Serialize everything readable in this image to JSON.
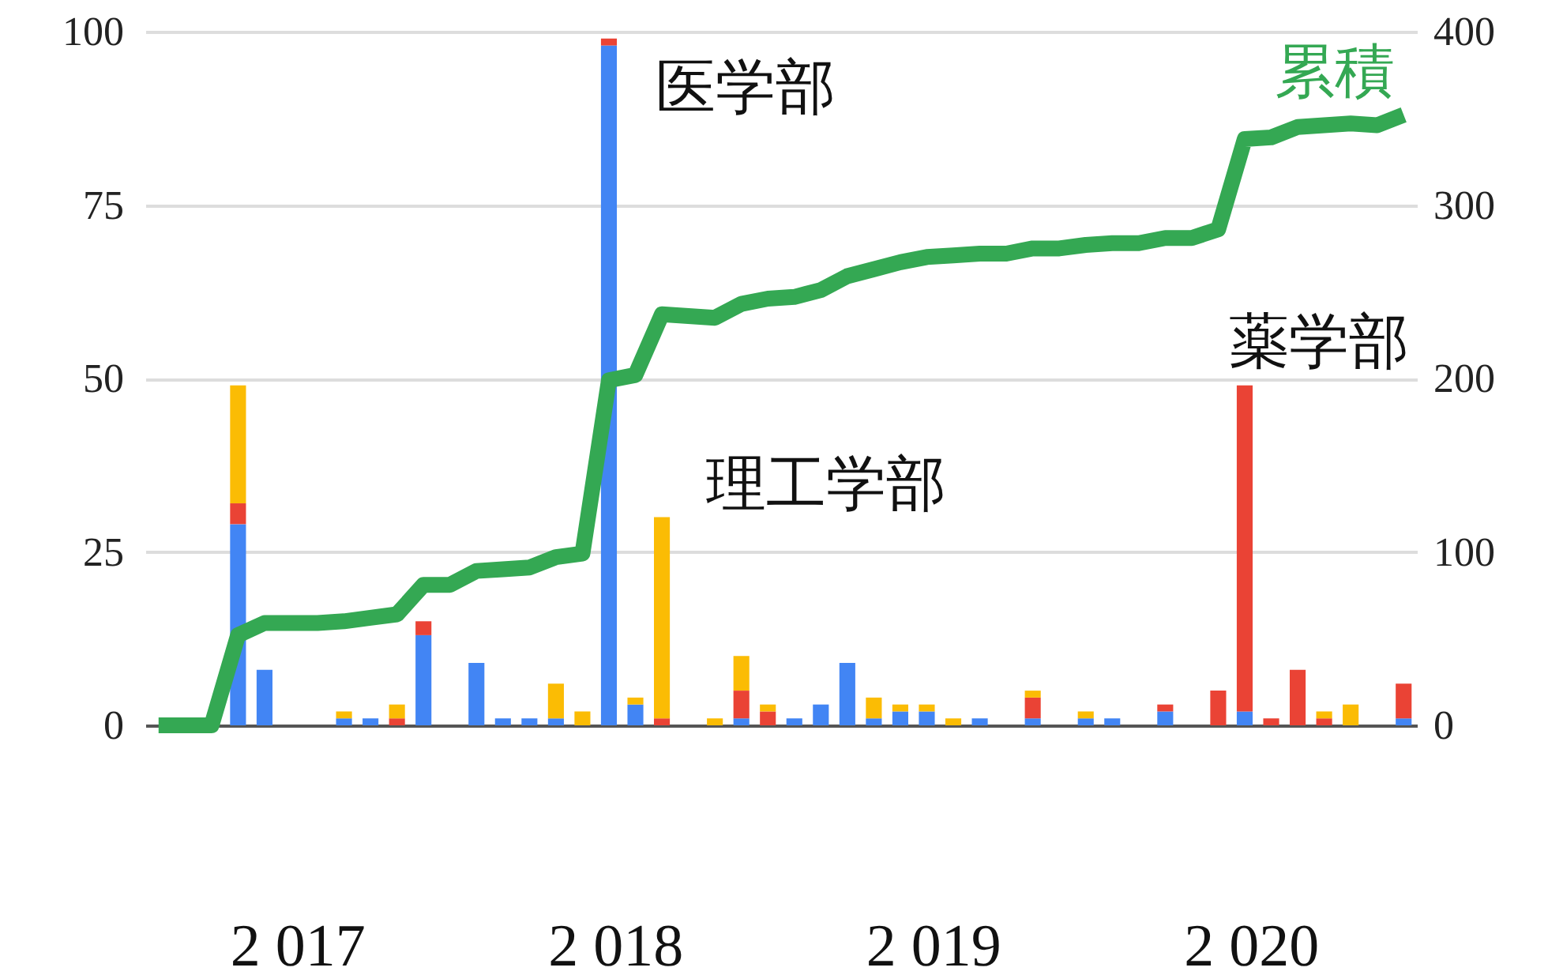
{
  "chart_data": {
    "type": "bar",
    "stacked": true,
    "categories": [
      null,
      null,
      null,
      null,
      null,
      null,
      null,
      null,
      null,
      null,
      null,
      null,
      null,
      null,
      null,
      null,
      null,
      null,
      null,
      null,
      null,
      null,
      null,
      null,
      null,
      null,
      null,
      null,
      null,
      null,
      null,
      null,
      null,
      null,
      null,
      null,
      null,
      null,
      null,
      null,
      null,
      null,
      null,
      null,
      null,
      null,
      null,
      null
    ],
    "series": [
      {
        "color": "#4285f4",
        "values": [
          null,
          null,
          null,
          29,
          8,
          null,
          null,
          1,
          1,
          null,
          13,
          null,
          9,
          1,
          1,
          1,
          null,
          98,
          3,
          null,
          null,
          null,
          1,
          null,
          1,
          3,
          9,
          1,
          2,
          2,
          null,
          1,
          null,
          1,
          null,
          1,
          1,
          null,
          2,
          null,
          null,
          2,
          null,
          null,
          null,
          null,
          null,
          1
        ]
      },
      {
        "color": "#ea4335",
        "values": [
          null,
          null,
          null,
          3,
          null,
          null,
          null,
          null,
          null,
          1,
          2,
          null,
          null,
          null,
          null,
          null,
          null,
          1,
          null,
          1,
          null,
          null,
          4,
          2,
          null,
          null,
          null,
          null,
          null,
          null,
          null,
          null,
          null,
          3,
          null,
          null,
          null,
          null,
          1,
          null,
          5,
          47,
          1,
          8,
          1,
          null,
          null,
          5
        ]
      },
      {
        "color": "#fbbc04",
        "values": [
          null,
          null,
          null,
          17,
          null,
          null,
          null,
          1,
          null,
          2,
          null,
          null,
          null,
          null,
          null,
          5,
          2,
          null,
          1,
          29,
          null,
          1,
          5,
          1,
          null,
          null,
          null,
          3,
          1,
          1,
          1,
          null,
          null,
          1,
          null,
          1,
          null,
          null,
          null,
          null,
          null,
          null,
          null,
          null,
          1,
          3,
          null,
          null
        ]
      },
      {
        "name": "累積",
        "type": "line",
        "axis": "y2",
        "color": "#34a853",
        "values": [
          0,
          0,
          0,
          52,
          59,
          59,
          59,
          60,
          62,
          64,
          81,
          81,
          89,
          90,
          91,
          97,
          99,
          199,
          202,
          237,
          236,
          235,
          243,
          246,
          247,
          251,
          259,
          263,
          267,
          270,
          271,
          272,
          272,
          275,
          275,
          277,
          278,
          278,
          281,
          281,
          286,
          338,
          339,
          345,
          346,
          347,
          346,
          352
        ]
      }
    ],
    "ylim": [
      0,
      100
    ],
    "yticks": [
      0,
      25,
      50,
      75,
      100
    ],
    "y2lim": [
      0,
      400
    ],
    "y2ticks": [
      0,
      100,
      200,
      300,
      400
    ],
    "grid": "y",
    "annotations": [
      "医学部",
      "理工学部",
      "薬学部",
      "2 017",
      "2 018",
      "2 019",
      "2 020"
    ]
  }
}
